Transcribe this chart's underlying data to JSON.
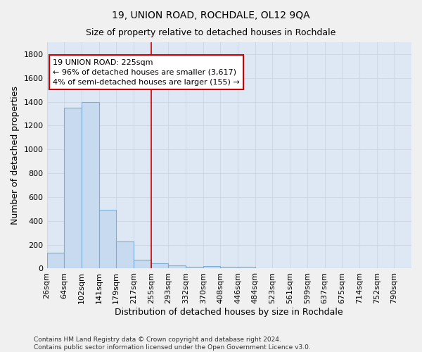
{
  "title": "19, UNION ROAD, ROCHDALE, OL12 9QA",
  "subtitle": "Size of property relative to detached houses in Rochdale",
  "xlabel": "Distribution of detached houses by size in Rochdale",
  "ylabel": "Number of detached properties",
  "footnote": "Contains HM Land Registry data © Crown copyright and database right 2024.\nContains public sector information licensed under the Open Government Licence v3.0.",
  "bar_labels": [
    "26sqm",
    "64sqm",
    "102sqm",
    "141sqm",
    "179sqm",
    "217sqm",
    "255sqm",
    "293sqm",
    "332sqm",
    "370sqm",
    "408sqm",
    "446sqm",
    "484sqm",
    "523sqm",
    "561sqm",
    "599sqm",
    "637sqm",
    "675sqm",
    "714sqm",
    "752sqm",
    "790sqm"
  ],
  "bar_values": [
    135,
    1350,
    1400,
    495,
    225,
    75,
    45,
    28,
    15,
    20,
    15,
    15,
    0,
    0,
    0,
    0,
    0,
    0,
    0,
    0,
    0
  ],
  "bar_color": "#c8daf0",
  "bar_edge_color": "#7aaed6",
  "vline_pos": 6,
  "annotation_line1": "19 UNION ROAD: 225sqm",
  "annotation_line2": "← 96% of detached houses are smaller (3,617)",
  "annotation_line3": "4% of semi-detached houses are larger (155) →",
  "annotation_box_color": "#ffffff",
  "annotation_box_edge": "#cc0000",
  "vline_color": "#cc0000",
  "ylim": [
    0,
    1900
  ],
  "yticks": [
    0,
    200,
    400,
    600,
    800,
    1000,
    1200,
    1400,
    1600,
    1800
  ],
  "grid_color": "#d0d8e8",
  "bg_color": "#dde8f4",
  "title_fontsize": 10,
  "subtitle_fontsize": 9,
  "axis_label_fontsize": 9,
  "tick_fontsize": 8,
  "footnote_fontsize": 6.5
}
